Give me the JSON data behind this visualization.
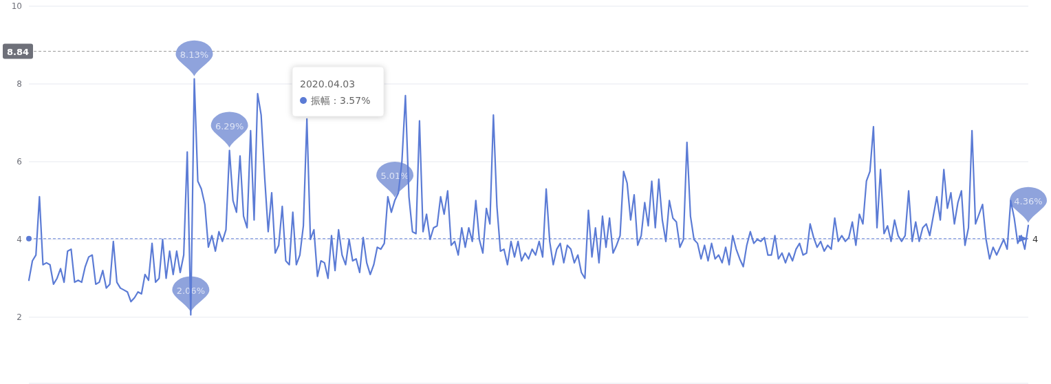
{
  "chart_data": {
    "type": "line",
    "ylim": [
      0.3,
      10
    ],
    "yticks": [
      2,
      4,
      6,
      8,
      10
    ],
    "grid": "y",
    "marker": "none",
    "line_style": "solid",
    "categories": [
      null,
      null,
      null,
      null,
      null,
      null,
      null,
      null,
      null,
      null,
      null,
      null,
      null,
      null,
      null,
      null,
      null,
      null,
      null,
      null,
      null,
      null,
      null,
      null,
      null,
      null,
      null,
      null,
      null,
      null,
      null,
      null,
      null,
      null,
      null,
      null,
      null,
      null,
      null,
      null,
      null,
      null,
      null,
      null,
      null,
      null,
      null,
      null,
      null,
      null,
      null,
      null,
      null,
      null,
      null,
      null,
      null,
      null,
      null,
      null,
      null,
      null,
      null,
      null,
      null,
      null,
      null,
      null,
      null,
      null,
      null,
      null,
      null,
      null,
      null,
      null,
      null,
      null,
      null,
      null,
      null,
      null,
      null,
      null,
      null,
      null,
      null,
      null,
      null,
      null,
      null,
      null,
      null,
      null,
      null,
      null,
      null,
      null,
      null,
      null,
      null,
      null,
      null,
      null,
      null,
      null,
      null,
      null,
      null,
      null,
      null,
      null,
      null,
      null,
      null,
      null,
      null,
      null,
      null,
      null,
      null,
      null,
      null,
      null,
      null,
      null,
      null,
      null,
      null,
      null,
      null,
      null,
      null,
      null,
      null,
      null,
      null,
      null,
      null,
      null,
      null,
      null,
      null,
      null,
      null,
      null,
      null,
      null,
      null,
      null,
      null,
      null,
      null,
      null,
      null,
      null,
      null,
      null,
      null,
      null,
      null,
      null,
      null,
      null,
      null,
      null,
      null,
      null,
      null,
      null,
      null,
      null,
      null,
      null,
      null,
      null,
      null,
      null,
      null,
      null,
      null,
      null,
      null,
      null,
      null,
      null,
      null,
      null,
      null,
      null,
      null,
      null,
      null,
      null,
      null,
      null,
      null,
      null,
      null,
      null,
      null,
      null,
      null,
      null,
      null,
      null,
      null,
      null,
      null,
      null,
      null,
      null,
      null,
      null,
      null,
      null,
      null,
      null,
      null,
      null,
      null,
      null,
      null,
      null,
      null,
      null,
      null,
      null,
      null,
      null,
      null,
      null,
      null,
      null,
      null,
      null,
      null,
      null,
      null,
      null,
      null,
      null,
      null,
      null,
      null,
      null,
      null,
      null,
      null,
      null,
      null,
      null,
      null,
      null,
      null,
      null,
      null,
      null,
      null,
      null,
      null,
      null,
      null,
      null,
      null,
      null,
      null,
      null,
      null,
      null,
      null,
      null,
      null,
      null,
      null,
      null,
      null,
      null,
      null,
      null,
      null,
      null,
      null,
      null,
      null
    ],
    "series": [
      {
        "color": "#5b7bd5",
        "values": [
          2.95,
          3.45,
          3.6,
          5.1,
          3.35,
          3.4,
          3.35,
          2.85,
          3.0,
          3.25,
          2.9,
          3.7,
          3.75,
          2.9,
          2.95,
          2.9,
          3.3,
          3.55,
          3.6,
          2.85,
          2.9,
          3.2,
          2.75,
          2.85,
          3.95,
          2.9,
          2.75,
          2.7,
          2.65,
          2.4,
          2.5,
          2.65,
          2.6,
          3.1,
          2.95,
          3.9,
          2.9,
          3.0,
          4.0,
          3.0,
          3.7,
          3.1,
          3.7,
          3.15,
          3.6,
          6.25,
          2.06,
          8.13,
          5.5,
          5.3,
          4.9,
          3.8,
          4.1,
          3.7,
          4.2,
          3.95,
          4.25,
          6.29,
          5.0,
          4.7,
          6.15,
          4.6,
          4.3,
          6.8,
          4.5,
          7.75,
          7.2,
          5.6,
          4.2,
          5.2,
          3.65,
          3.85,
          4.85,
          3.45,
          3.35,
          4.7,
          3.35,
          3.6,
          4.35,
          7.1,
          4.0,
          4.25,
          3.05,
          3.45,
          3.4,
          3.0,
          4.1,
          3.2,
          4.25,
          3.6,
          3.35,
          4.0,
          3.45,
          3.5,
          3.15,
          4.05,
          3.4,
          3.1,
          3.35,
          3.8,
          3.75,
          3.9,
          5.1,
          4.7,
          5.01,
          5.2,
          6.0,
          7.7,
          5.1,
          4.2,
          4.15,
          7.05,
          4.2,
          4.65,
          4.0,
          4.3,
          4.35,
          5.1,
          4.65,
          5.25,
          3.85,
          3.95,
          3.6,
          4.3,
          3.8,
          4.3,
          3.95,
          5.0,
          4.0,
          3.65,
          4.8,
          4.4,
          7.2,
          4.85,
          3.7,
          3.75,
          3.35,
          3.95,
          3.55,
          3.95,
          3.45,
          3.65,
          3.5,
          3.75,
          3.6,
          3.95,
          3.55,
          5.3,
          3.95,
          3.35,
          3.75,
          3.9,
          3.4,
          3.85,
          3.75,
          3.4,
          3.6,
          3.15,
          3.0,
          4.75,
          3.55,
          4.3,
          3.4,
          4.6,
          3.8,
          4.55,
          3.65,
          3.85,
          4.1,
          5.75,
          5.45,
          4.5,
          5.15,
          3.85,
          4.1,
          4.95,
          4.35,
          5.5,
          4.3,
          5.55,
          4.5,
          3.95,
          5.0,
          4.55,
          4.45,
          3.8,
          4.0,
          6.5,
          4.6,
          4.0,
          3.9,
          3.5,
          3.85,
          3.45,
          3.9,
          3.5,
          3.6,
          3.4,
          3.8,
          3.35,
          4.1,
          3.75,
          3.5,
          3.3,
          3.85,
          4.2,
          3.9,
          4.0,
          3.95,
          4.05,
          3.6,
          3.6,
          4.1,
          3.5,
          3.65,
          3.4,
          3.65,
          3.45,
          3.75,
          3.9,
          3.6,
          3.65,
          4.4,
          4.05,
          3.8,
          3.95,
          3.7,
          3.85,
          3.75,
          4.55,
          3.95,
          4.1,
          3.95,
          4.05,
          4.45,
          3.85,
          4.65,
          4.4,
          5.5,
          5.75,
          6.9,
          4.3,
          5.8,
          4.15,
          4.35,
          3.95,
          4.5,
          4.1,
          3.95,
          4.1,
          5.25,
          3.95,
          4.45,
          3.95,
          4.3,
          4.4,
          4.1,
          4.6,
          5.1,
          4.5,
          5.8,
          4.8,
          5.2,
          4.4,
          4.95,
          5.25,
          3.85,
          4.3,
          6.8,
          4.4,
          4.65,
          4.9,
          4.0,
          3.5,
          3.8,
          3.6,
          3.8,
          4.0,
          3.75,
          5.0,
          4.55,
          3.9,
          4.1,
          3.75,
          4.36
        ]
      }
    ],
    "ref_lines": [
      {
        "axis": "y",
        "value": 8.84,
        "label": "8.84",
        "color": "#9a9a9a",
        "line_style": "dashed"
      },
      {
        "axis": "y",
        "value": 4.02,
        "label": "4",
        "color": "#5b7bd5",
        "line_style": "dashed"
      }
    ],
    "annotations": [
      {
        "text": "8.13%",
        "y": 8.13
      },
      {
        "text": "6.29%",
        "y": 6.29
      },
      {
        "text": "2.06%",
        "y": 2.06
      },
      {
        "text": "5.01%",
        "y": 5.01
      },
      {
        "text": "4.36%",
        "y": 4.36
      },
      "2020.04.03",
      "振幅：3.57%"
    ]
  }
}
